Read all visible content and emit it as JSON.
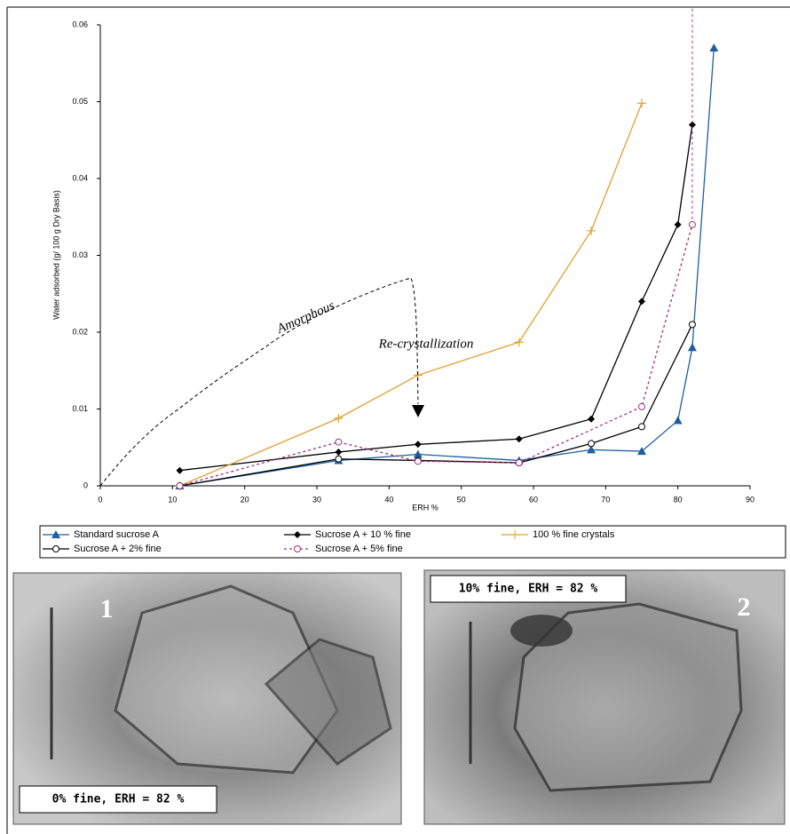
{
  "chart_data": {
    "type": "line",
    "x_label": "ERH %",
    "y_label": "Water adsorbed (g/ 100 g Dry Basis)",
    "annotations": [
      "Amorphous",
      "Re-crystallization"
    ],
    "xlim": [
      0,
      90
    ],
    "xticks": [
      0,
      10,
      20,
      30,
      40,
      50,
      60,
      70,
      80,
      90
    ],
    "ylim": [
      0,
      0.06
    ],
    "yticks": [
      0,
      0.01,
      0.02,
      0.03,
      0.04,
      0.05,
      0.06
    ],
    "series": [
      {
        "name": "Standard sucrose  A",
        "color": "#1f5fa0",
        "marker": "triangle",
        "dashed": false,
        "x": [
          11,
          33,
          44,
          58,
          68,
          75,
          80,
          82,
          85
        ],
        "values": [
          0,
          0.0033,
          0.0041,
          0.0033,
          0.0047,
          0.0045,
          0.0085,
          0.018,
          0.057
        ]
      },
      {
        "name": "Sucrose  A + 10 % fine",
        "color": "#000000",
        "marker": "diamond",
        "dashed": false,
        "x": [
          11,
          33,
          44,
          58,
          68,
          75,
          80,
          82
        ],
        "values": [
          0.002,
          0.0044,
          0.0054,
          0.0061,
          0.0087,
          0.024,
          0.034,
          0.047
        ]
      },
      {
        "name": "100 % fine crystals",
        "color": "#e0a030",
        "marker": "plus",
        "dashed": false,
        "x": [
          11,
          33,
          44,
          58,
          68,
          75
        ],
        "values": [
          0,
          0.0088,
          0.0144,
          0.0187,
          0.0332,
          0.0498
        ]
      },
      {
        "name": "Sucrose  A + 2% fine",
        "color": "#000000",
        "marker": "circle",
        "dashed": false,
        "x": [
          11,
          33,
          44,
          58,
          68,
          75,
          82
        ],
        "values": [
          0,
          0.0035,
          0.0033,
          0.003,
          0.0055,
          0.0077,
          0.021
        ]
      },
      {
        "name": "Sucrose  A + 5% fine",
        "color": "#a0307f",
        "marker": "circle",
        "dashed": true,
        "x": [
          11,
          33,
          44,
          58,
          75,
          82
        ],
        "values": [
          0,
          0.0057,
          0.0032,
          0.003,
          0.0103,
          0.034
        ]
      }
    ]
  },
  "photos": [
    {
      "number": "1",
      "caption": "0% fine, ERH = 82 %"
    },
    {
      "number": "2",
      "caption": "10% fine, ERH = 82 %"
    }
  ]
}
